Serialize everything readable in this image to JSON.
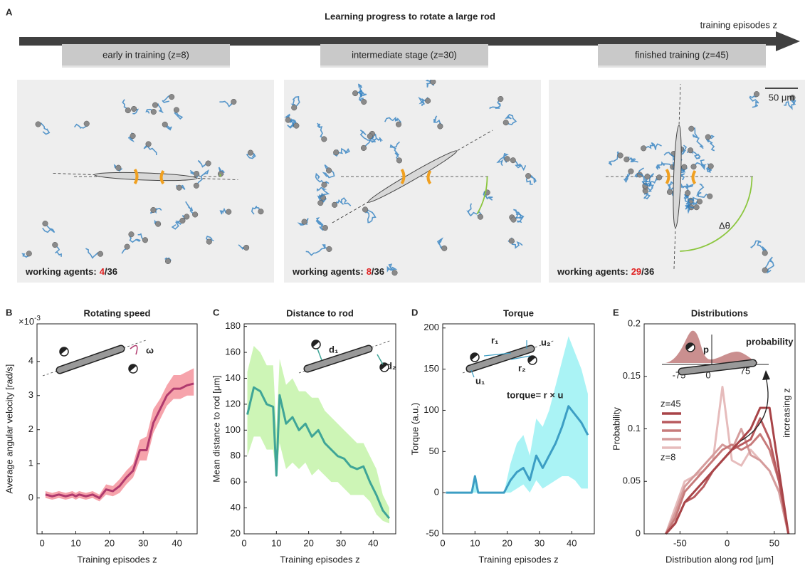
{
  "panel_a": {
    "panel": "A",
    "title": "Learning progress to rotate a large rod",
    "axis_label": "training episodes z",
    "scale": "50 μm",
    "angle_label": "Δθ",
    "stages": [
      {
        "label": "early in training (z=8)",
        "agents_label": "working agents:",
        "working": 4,
        "total_label": "/36"
      },
      {
        "label": "intermediate stage (z=30)",
        "agents_label": "working agents:",
        "working": 8,
        "total_label": "/36"
      },
      {
        "label": "finished training (z=45)",
        "agents_label": "working agents:",
        "working": 29,
        "total_label": "/36"
      }
    ]
  },
  "chart_data": [
    {
      "type": "line",
      "panel": "B",
      "title": "Rotating speed",
      "x_label": "Training episodes z",
      "y_label": "Average angular velocity [rad/s]",
      "y_multiplier": "×10",
      "y_multiplier_exp": "-3",
      "annotations": [
        "ω"
      ],
      "color": "#b03a6e",
      "band_color": "#f6a3ab",
      "x": [
        1,
        3,
        5,
        7,
        9,
        10,
        11,
        13,
        15,
        17,
        19,
        21,
        23,
        25,
        27,
        29,
        31,
        33,
        35,
        37,
        39,
        41,
        43,
        45
      ],
      "values": [
        0.1,
        0.05,
        0.1,
        0.05,
        0.1,
        0.05,
        0.1,
        0.05,
        0.1,
        0.0,
        0.25,
        0.2,
        0.35,
        0.6,
        0.8,
        1.4,
        1.4,
        2.2,
        2.6,
        3.0,
        3.2,
        3.2,
        3.3,
        3.35
      ],
      "band_lower": [
        0,
        -0.05,
        0,
        -0.05,
        0,
        -0.05,
        0,
        -0.05,
        0,
        -0.1,
        0.1,
        0.05,
        0.15,
        0.4,
        0.6,
        1.1,
        1.1,
        1.9,
        2.3,
        2.7,
        2.9,
        2.9,
        3.0,
        3.0
      ],
      "band_upper": [
        0.2,
        0.15,
        0.2,
        0.15,
        0.2,
        0.15,
        0.2,
        0.15,
        0.2,
        0.1,
        0.4,
        0.35,
        0.55,
        0.8,
        1.0,
        1.7,
        1.8,
        2.6,
        2.9,
        3.3,
        3.6,
        3.6,
        3.7,
        3.8
      ],
      "xlim": [
        -1.5,
        46
      ],
      "xticks": [
        0,
        10,
        20,
        30,
        40
      ],
      "ylim": [
        -1.05,
        5.1
      ],
      "yticks": [
        0,
        1,
        2,
        3,
        4
      ]
    },
    {
      "type": "line",
      "panel": "C",
      "title": "Distance to rod",
      "x_label": "Training episodes z",
      "y_label": "Mean distance to rod [μm]",
      "annotations": [
        "d₁",
        "d₂"
      ],
      "color": "#3fa597",
      "band_color": "#cdf5b6",
      "x": [
        1,
        3,
        5,
        7,
        9,
        10,
        11,
        13,
        15,
        17,
        19,
        21,
        23,
        25,
        27,
        29,
        31,
        33,
        35,
        37,
        39,
        41,
        43,
        45
      ],
      "values": [
        112,
        133,
        130,
        120,
        118,
        65,
        127,
        105,
        110,
        100,
        105,
        95,
        100,
        90,
        85,
        80,
        78,
        72,
        70,
        72,
        60,
        50,
        38,
        32
      ],
      "band_lower": [
        80,
        95,
        95,
        85,
        85,
        65,
        90,
        70,
        75,
        70,
        75,
        65,
        70,
        65,
        60,
        60,
        55,
        50,
        50,
        50,
        45,
        35,
        30,
        28
      ],
      "band_upper": [
        145,
        165,
        160,
        150,
        150,
        100,
        155,
        135,
        140,
        130,
        130,
        125,
        125,
        115,
        110,
        105,
        100,
        95,
        90,
        90,
        80,
        70,
        50,
        40
      ],
      "xlim": [
        0,
        47
      ],
      "xticks": [
        0,
        10,
        20,
        30,
        40
      ],
      "ylim": [
        20,
        182
      ],
      "yticks": [
        20,
        40,
        60,
        80,
        100,
        120,
        140,
        160,
        180
      ]
    },
    {
      "type": "line",
      "panel": "D",
      "title": "Torque",
      "x_label": "Training episodes z",
      "y_label": "Torque (a.u.)",
      "annotations": [
        "r₁",
        "r₂",
        "u₁",
        "u₂",
        "torque= r × u"
      ],
      "color": "#3c9ec4",
      "band_color": "#aaf3f5",
      "x": [
        1,
        3,
        5,
        7,
        9,
        10,
        11,
        13,
        15,
        17,
        19,
        21,
        23,
        25,
        27,
        29,
        31,
        33,
        35,
        37,
        39,
        41,
        43,
        45
      ],
      "values": [
        0,
        0,
        0,
        0,
        0,
        20,
        0,
        0,
        0,
        0,
        0,
        15,
        25,
        30,
        15,
        45,
        30,
        45,
        60,
        80,
        105,
        95,
        85,
        70
      ],
      "band_lower": [
        0,
        0,
        0,
        0,
        0,
        0,
        0,
        0,
        0,
        0,
        0,
        0,
        5,
        10,
        0,
        15,
        5,
        10,
        15,
        20,
        20,
        15,
        5,
        5
      ],
      "band_upper": [
        0,
        0,
        0,
        0,
        0,
        20,
        0,
        0,
        0,
        0,
        0,
        35,
        60,
        70,
        45,
        90,
        80,
        100,
        130,
        160,
        190,
        170,
        150,
        120
      ],
      "xlim": [
        0,
        47
      ],
      "xticks": [
        0,
        10,
        20,
        30,
        40
      ],
      "ylim": [
        -50,
        205
      ],
      "yticks": [
        -50,
        0,
        50,
        100,
        150,
        200
      ]
    },
    {
      "type": "line",
      "panel": "E",
      "title": "Distributions",
      "x_label": "Distribution along rod [μm]",
      "y_label": "Probability",
      "annotations": [
        "probability",
        "p",
        "-75",
        "0",
        "75",
        "increasing z"
      ],
      "x": [
        -65,
        -55,
        -45,
        -35,
        -25,
        -15,
        -5,
        5,
        15,
        25,
        35,
        45,
        55,
        65
      ],
      "series": [
        {
          "name": "z=45",
          "color": "#a84448",
          "values": [
            0,
            0.01,
            0.03,
            0.04,
            0.05,
            0.06,
            0.07,
            0.08,
            0.09,
            0.1,
            0.12,
            0.12,
            0.06,
            0
          ]
        },
        {
          "name": null,
          "color": "#b85a5e",
          "values": [
            0,
            0.01,
            0.03,
            0.035,
            0.045,
            0.06,
            0.07,
            0.08,
            0.085,
            0.09,
            0.11,
            0.09,
            0.05,
            0
          ]
        },
        {
          "name": null,
          "color": "#c77b7b",
          "values": [
            0,
            0.015,
            0.04,
            0.05,
            0.06,
            0.07,
            0.08,
            0.085,
            0.08,
            0.085,
            0.095,
            0.08,
            0.05,
            0
          ]
        },
        {
          "name": null,
          "color": "#d59c9c",
          "values": [
            0,
            0.02,
            0.045,
            0.055,
            0.065,
            0.075,
            0.085,
            0.08,
            0.1,
            0.075,
            0.07,
            0.06,
            0.04,
            0
          ]
        },
        {
          "name": "z=8",
          "color": "#e6bcbc",
          "values": [
            0,
            0.025,
            0.05,
            0.055,
            0.06,
            0.07,
            0.14,
            0.07,
            0.065,
            0.08,
            0.07,
            0.06,
            0.04,
            0
          ]
        }
      ],
      "xlim": [
        -88,
        72
      ],
      "xticks": [
        -50,
        0,
        50
      ],
      "ylim": [
        0,
        0.2
      ],
      "yticks": [
        0,
        0.05,
        0.1,
        0.15,
        0.2
      ]
    }
  ]
}
